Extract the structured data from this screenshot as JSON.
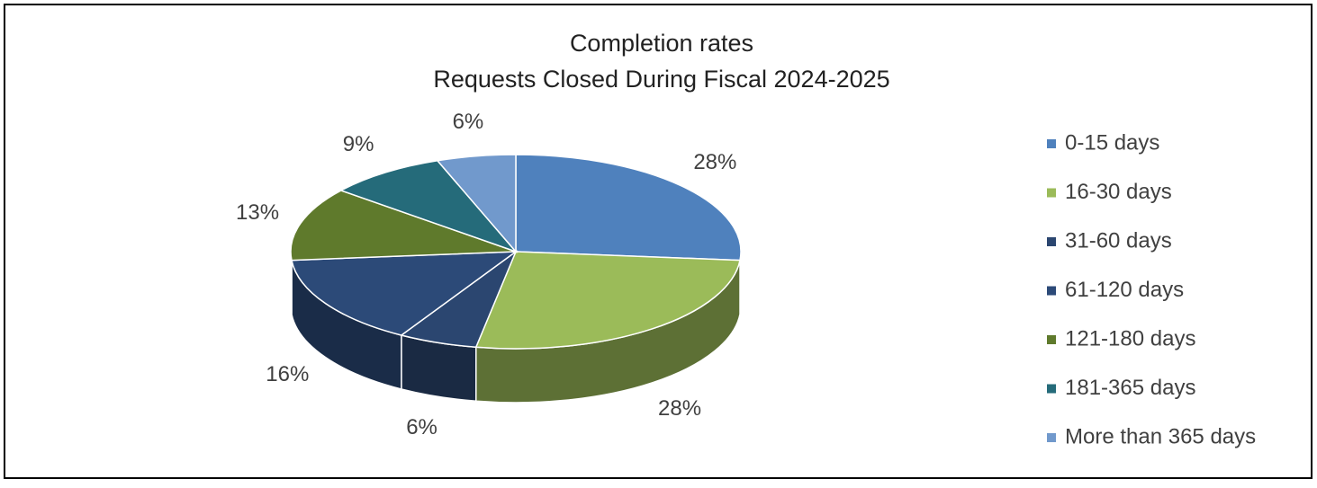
{
  "chart_data": {
    "type": "pie3d",
    "title": "Completion rates",
    "subtitle": "Requests Closed During Fiscal 2024-2025",
    "categories": [
      "0-15 days",
      "16-30 days",
      "31-60 days",
      "61-120 days",
      "121-180 days",
      "181-365 days",
      "More than 365 days"
    ],
    "values": [
      28,
      28,
      6,
      16,
      13,
      9,
      6
    ],
    "value_labels": [
      "28%",
      "28%",
      "6%",
      "16%",
      "13%",
      "9%",
      "6%"
    ],
    "colors": [
      "#4f81bd",
      "#9bbb59",
      "#2b4670",
      "#2c4a78",
      "#5f7a2c",
      "#256b7a",
      "#7199cc"
    ],
    "legend": "right"
  }
}
